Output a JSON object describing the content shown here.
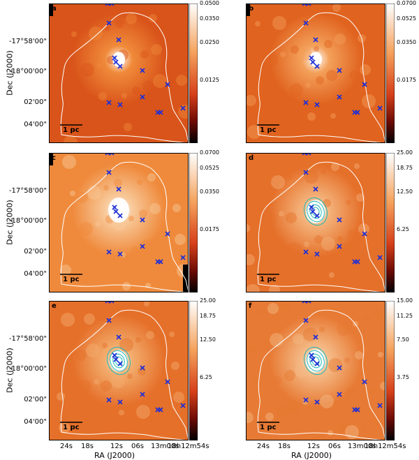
{
  "axes": {
    "ylabel": "Dec (J2000)",
    "xlabel": "RA (J2000)",
    "dec_ticks": [
      "-17°58'00\"",
      "-18°00'00\"",
      "02'00\"",
      "04'00\""
    ],
    "ra_ticks": [
      "24s",
      "18s",
      "12s",
      "06s",
      "13m00s",
      "18h12m54s"
    ]
  },
  "scalebar_label": "1 pc",
  "panels": [
    {
      "letter": "a",
      "colorbar_ticks": [
        "0.0500",
        "0.0350",
        "0.0250",
        "0.0125"
      ]
    },
    {
      "letter": "b",
      "colorbar_ticks": [
        "0.0700",
        "0.0525",
        "0.0350",
        "0.0175"
      ]
    },
    {
      "letter": "c",
      "colorbar_ticks": [
        "0.0700",
        "0.0525",
        "0.0350",
        "0.0175"
      ]
    },
    {
      "letter": "d",
      "colorbar_ticks": [
        "25.00",
        "18.75",
        "12.50",
        "6.25"
      ]
    },
    {
      "letter": "e",
      "colorbar_ticks": [
        "25.00",
        "18.75",
        "12.50",
        "6.25"
      ]
    },
    {
      "letter": "f",
      "colorbar_ticks": [
        "15.00",
        "11.25",
        "7.50",
        "3.75"
      ]
    }
  ],
  "colors": {
    "marker": "#1f2fd6",
    "contour_white": "#ffffff",
    "contour_cyan": "#1fb8b8"
  }
}
